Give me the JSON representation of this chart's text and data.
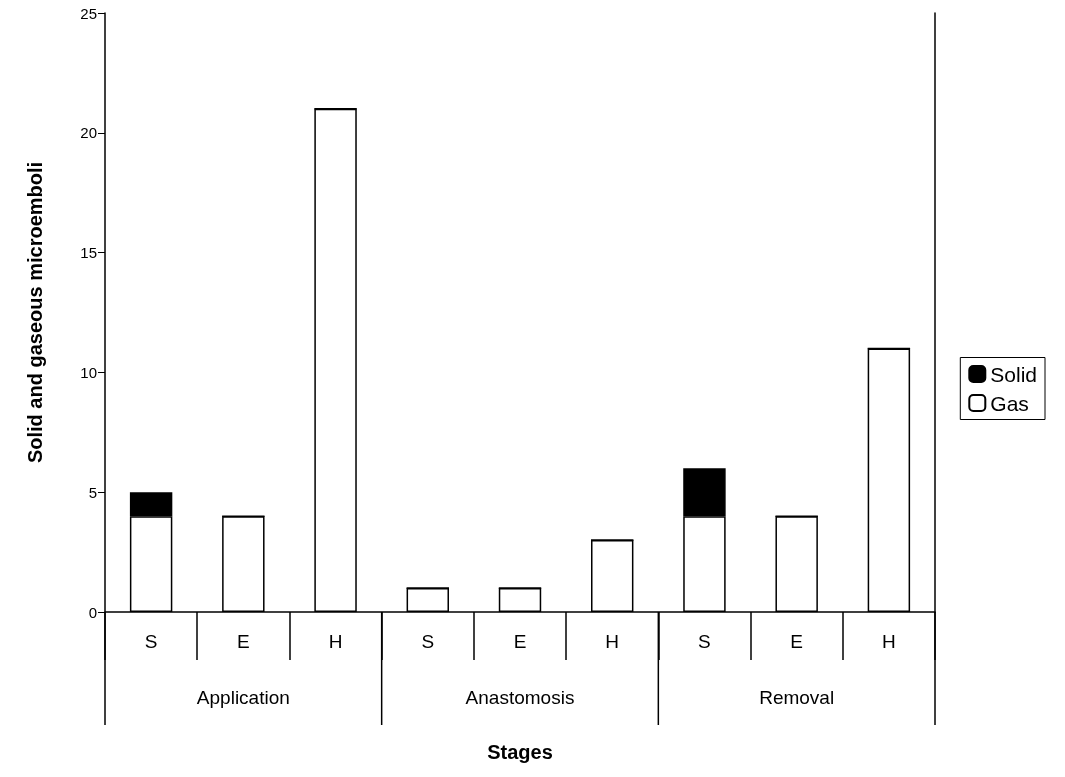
{
  "chart_data": {
    "type": "bar",
    "stacked": true,
    "xlabel": "Stages",
    "ylabel": "Solid and gaseous microemboli",
    "categories": [
      "S",
      "E",
      "H",
      "S",
      "E",
      "H",
      "S",
      "E",
      "H"
    ],
    "series": [
      {
        "name": "Gas",
        "color": "#ffffff",
        "values": [
          4,
          4,
          21,
          1,
          1,
          3,
          4,
          4,
          11
        ]
      },
      {
        "name": "Solid",
        "color": "#000000",
        "values": [
          1,
          0,
          0,
          0,
          0,
          0,
          2,
          0,
          0
        ]
      }
    ],
    "ylim": [
      0,
      25
    ],
    "yticks": [
      0,
      5,
      10,
      15,
      20,
      25
    ],
    "grid": false,
    "legend": "right",
    "annotations": [
      "Application",
      "Anastomosis",
      "Removal"
    ]
  }
}
